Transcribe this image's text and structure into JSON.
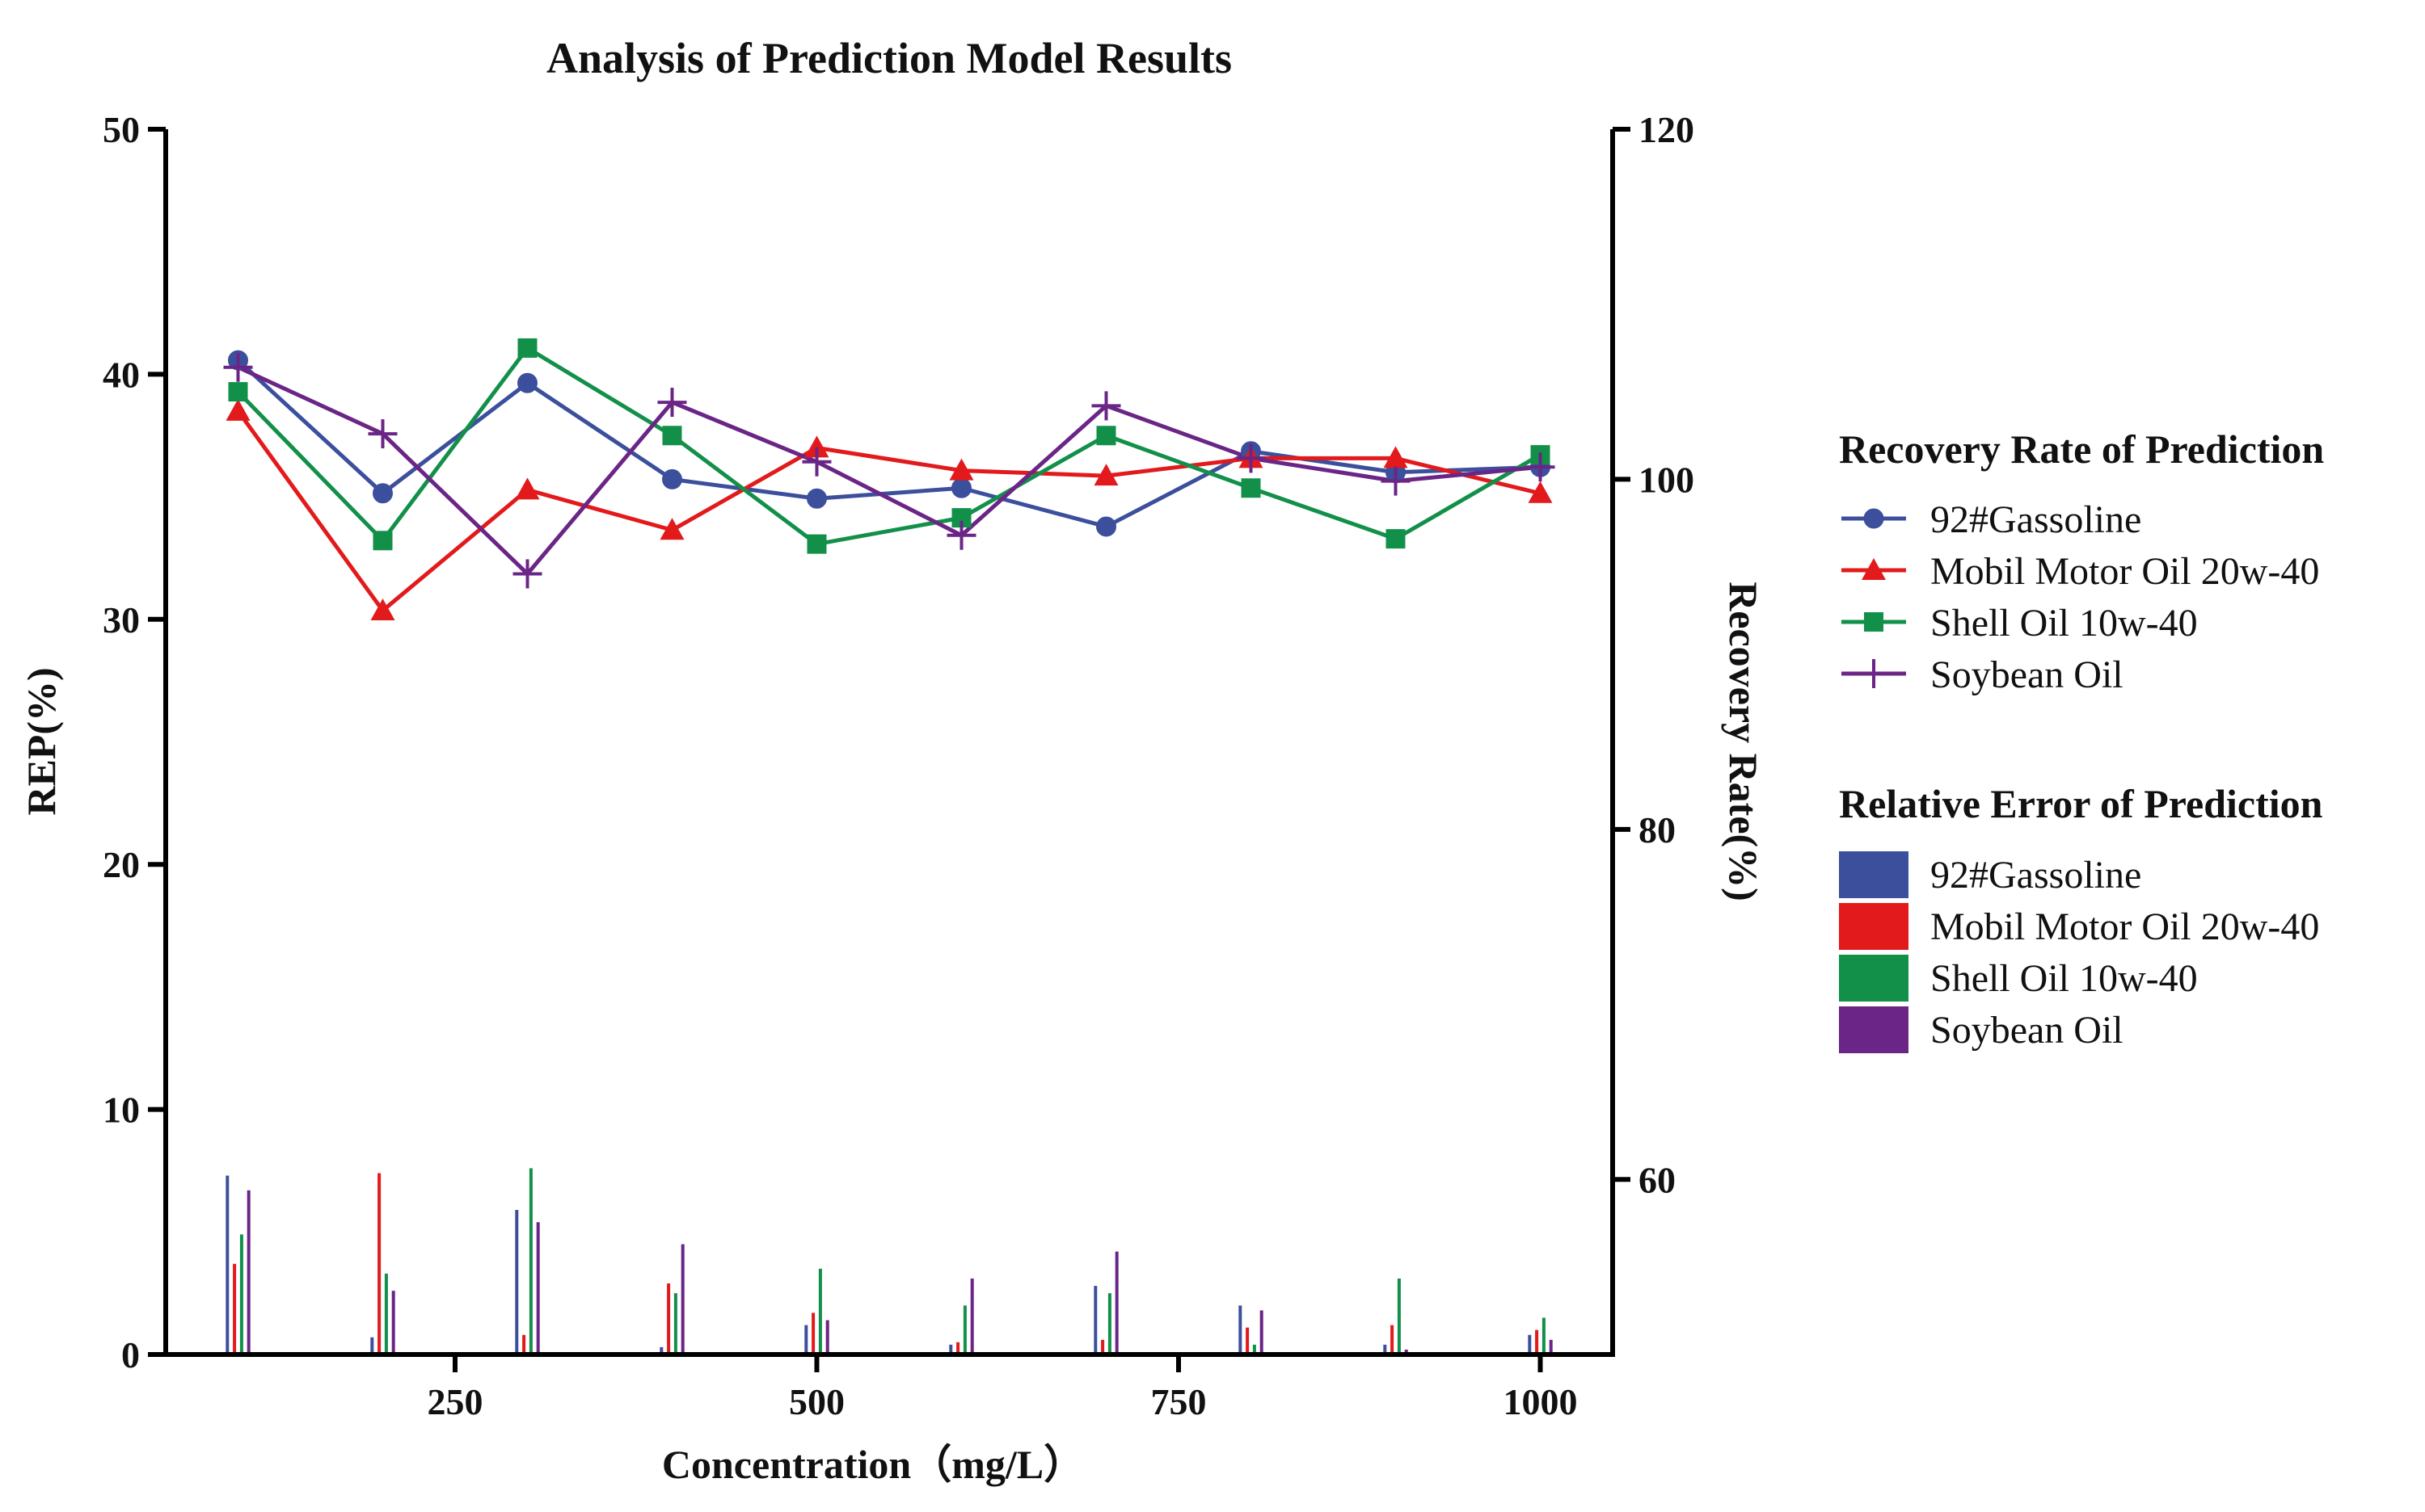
{
  "chart_data": {
    "type": "bar+line",
    "title": "Analysis of Prediction Model Results",
    "xlabel": "Concentration（mg/L）",
    "ylabel_left": "REP(%)",
    "ylabel_right": "Recovery Rate(%)",
    "x": [
      100,
      200,
      300,
      400,
      500,
      600,
      700,
      800,
      900,
      1000
    ],
    "xlim": [
      50,
      1050
    ],
    "x_ticks": [
      250,
      500,
      750,
      1000
    ],
    "ylim_left": [
      0,
      50
    ],
    "y_ticks_left": [
      0,
      10,
      20,
      30,
      40,
      50
    ],
    "ylim_right": [
      50,
      120
    ],
    "y_ticks_right": [
      60,
      80,
      100,
      120
    ],
    "legend_line_title": "Recovery Rate of Prediction",
    "legend_bar_title": "Relative Error of Prediction",
    "colors": {
      "92#Gassoline": "#3c4f9c",
      "Mobil Motor Oil 20w-40": "#e21a1c",
      "Shell Oil 10w-40": "#12904a",
      "Soybean Oil": "#6a2586"
    },
    "series": [
      {
        "name": "92#Gassoline",
        "marker": "circle",
        "recovery": [
          106.8,
          99.2,
          105.5,
          100.0,
          98.9,
          99.5,
          97.3,
          101.6,
          100.4,
          100.7
        ],
        "rep": [
          7.3,
          0.7,
          5.9,
          0.3,
          1.2,
          0.4,
          2.8,
          2.0,
          0.4,
          0.8
        ]
      },
      {
        "name": "Mobil Motor Oil 20w-40",
        "marker": "triangle",
        "recovery": [
          103.9,
          92.5,
          99.4,
          97.1,
          101.8,
          100.5,
          100.2,
          101.2,
          101.2,
          99.2
        ],
        "rep": [
          3.7,
          7.4,
          0.8,
          2.9,
          1.7,
          0.5,
          0.6,
          1.1,
          1.2,
          1.0
        ]
      },
      {
        "name": "Shell Oil 10w-40",
        "marker": "square",
        "recovery": [
          105.0,
          96.5,
          107.5,
          102.5,
          96.3,
          97.8,
          102.5,
          99.5,
          96.6,
          101.4
        ],
        "rep": [
          4.9,
          3.3,
          7.6,
          2.5,
          3.5,
          2.0,
          2.5,
          0.4,
          3.1,
          1.5
        ]
      },
      {
        "name": "Soybean Oil",
        "marker": "plus",
        "recovery": [
          106.4,
          102.6,
          94.6,
          104.4,
          101.0,
          96.8,
          104.2,
          101.2,
          99.9,
          100.7
        ],
        "rep": [
          6.7,
          2.6,
          5.4,
          4.5,
          1.4,
          3.1,
          4.2,
          1.8,
          0.2,
          0.6
        ]
      }
    ]
  }
}
